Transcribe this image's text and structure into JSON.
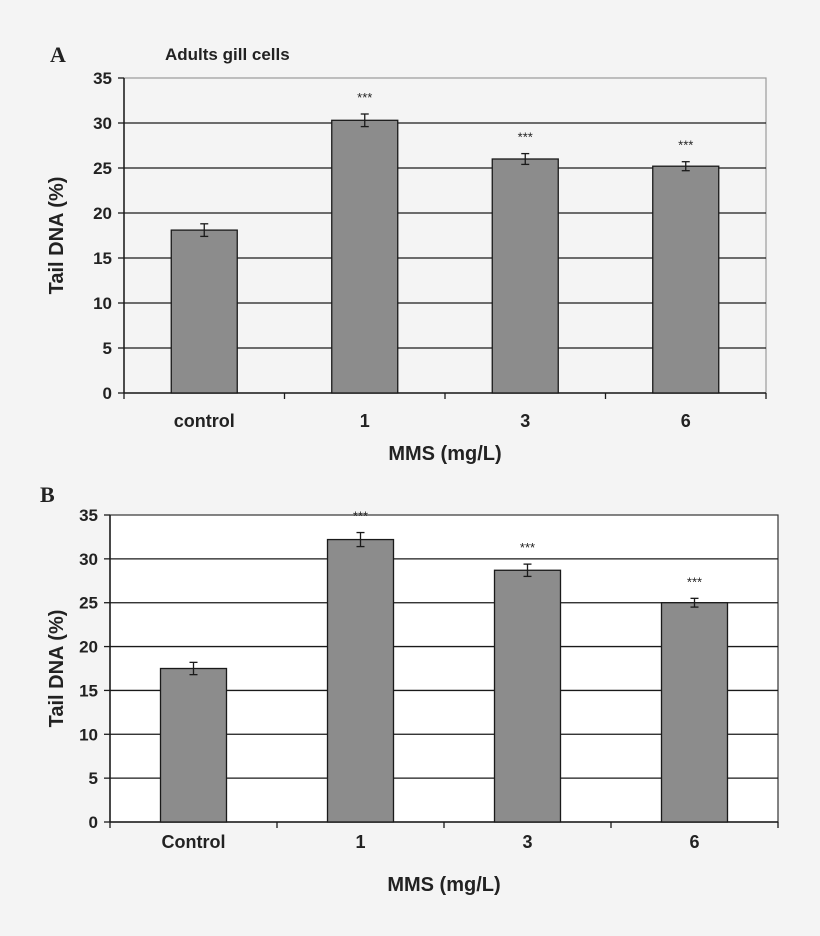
{
  "chart_data": [
    {
      "panel": "A",
      "type": "bar",
      "title": "Adults gill cells",
      "categories": [
        "control",
        "1",
        "3",
        "6"
      ],
      "values": [
        18.1,
        30.3,
        26.0,
        25.2
      ],
      "errors": [
        0.7,
        0.7,
        0.6,
        0.5
      ],
      "annotations": [
        "",
        "***",
        "***",
        "***"
      ],
      "xlabel": "MMS (mg/L)",
      "ylabel": "Tail DNA (%)",
      "ylim": [
        0,
        35
      ],
      "yticks": [
        0,
        5,
        10,
        15,
        20,
        25,
        30,
        35
      ],
      "grid": true,
      "bar_color": "#8c8c8c",
      "plot_background": "#f4f4f4"
    },
    {
      "panel": "B",
      "type": "bar",
      "title": "",
      "categories": [
        "Control",
        "1",
        "3",
        "6"
      ],
      "values": [
        17.5,
        32.2,
        28.7,
        25.0
      ],
      "errors": [
        0.7,
        0.8,
        0.7,
        0.5
      ],
      "annotations": [
        "",
        "***",
        "***",
        "***"
      ],
      "xlabel": "MMS (mg/L)",
      "ylabel": "Tail DNA (%)",
      "ylim": [
        0,
        35
      ],
      "yticks": [
        0,
        5,
        10,
        15,
        20,
        25,
        30,
        35
      ],
      "grid": true,
      "bar_color": "#8c8c8c",
      "plot_background": "#ffffff"
    }
  ]
}
